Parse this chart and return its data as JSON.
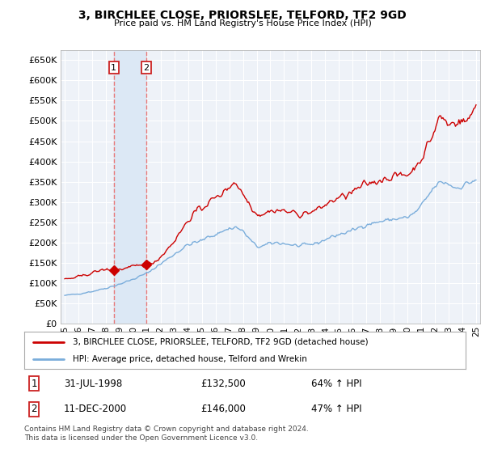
{
  "title": "3, BIRCHLEE CLOSE, PRIORSLEE, TELFORD, TF2 9GD",
  "subtitle": "Price paid vs. HM Land Registry's House Price Index (HPI)",
  "legend_line1": "3, BIRCHLEE CLOSE, PRIORSLEE, TELFORD, TF2 9GD (detached house)",
  "legend_line2": "HPI: Average price, detached house, Telford and Wrekin",
  "footnote": "Contains HM Land Registry data © Crown copyright and database right 2024.\nThis data is licensed under the Open Government Licence v3.0.",
  "sale1_date": "31-JUL-1998",
  "sale1_price": "£132,500",
  "sale1_hpi": "64% ↑ HPI",
  "sale2_date": "11-DEC-2000",
  "sale2_price": "£146,000",
  "sale2_hpi": "47% ↑ HPI",
  "sale_color": "#cc0000",
  "hpi_color": "#7aaddb",
  "vline_color": "#e87878",
  "span_color": "#dce8f5",
  "background_color": "#ffffff",
  "plot_bg_color": "#eef2f8",
  "grid_color": "#ffffff",
  "ylim": [
    0,
    675000
  ],
  "yticks": [
    0,
    50000,
    100000,
    150000,
    200000,
    250000,
    300000,
    350000,
    400000,
    450000,
    500000,
    550000,
    600000,
    650000
  ],
  "sale1_x": 1998.58,
  "sale1_y": 132500,
  "sale2_x": 2000.95,
  "sale2_y": 146000,
  "xlim_start": 1994.7,
  "xlim_end": 2025.3,
  "xtick_years": [
    1995,
    1996,
    1997,
    1998,
    1999,
    2000,
    2001,
    2002,
    2003,
    2004,
    2005,
    2006,
    2007,
    2008,
    2009,
    2010,
    2011,
    2012,
    2013,
    2014,
    2015,
    2016,
    2017,
    2018,
    2019,
    2020,
    2021,
    2022,
    2023,
    2024,
    2025
  ]
}
